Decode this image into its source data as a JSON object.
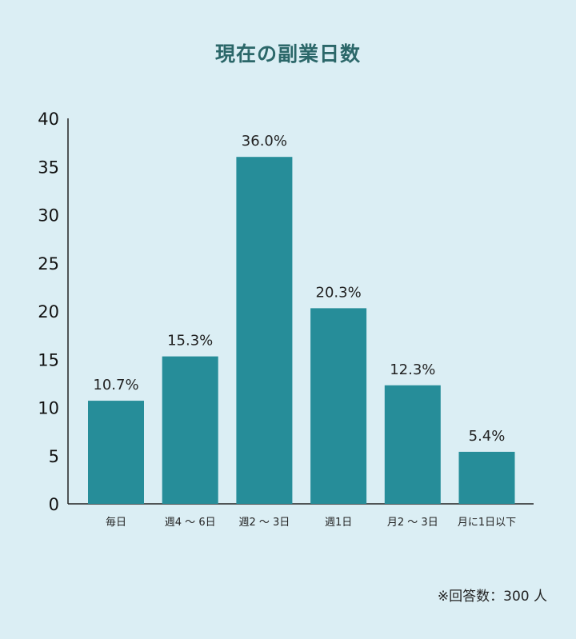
{
  "chart_data": {
    "type": "bar",
    "title": "現在の副業日数",
    "categories": [
      "毎日",
      "週4〜6日",
      "週2〜3日",
      "週1日",
      "月2〜3日",
      "月に1日以下"
    ],
    "category_labels": [
      "毎日",
      "週4 〜 6日",
      "週2 〜 3日",
      "週1日",
      "月2 〜 3日",
      "月に1日以下"
    ],
    "values": [
      10.7,
      15.3,
      36.0,
      20.3,
      12.3,
      5.4
    ],
    "data_labels": [
      "10.7%",
      "15.3%",
      "36.0%",
      "20.3%",
      "12.3%",
      "5.4%"
    ],
    "yticks": [
      "0",
      "5",
      "10",
      "15",
      "20",
      "25",
      "30",
      "35",
      "40"
    ],
    "ylim": [
      0,
      40
    ],
    "xlabel": "",
    "ylabel": "",
    "grid": false,
    "bar_color": "#268d99",
    "title_color": "#2b6769"
  },
  "footnote": "※回答数：300 人"
}
